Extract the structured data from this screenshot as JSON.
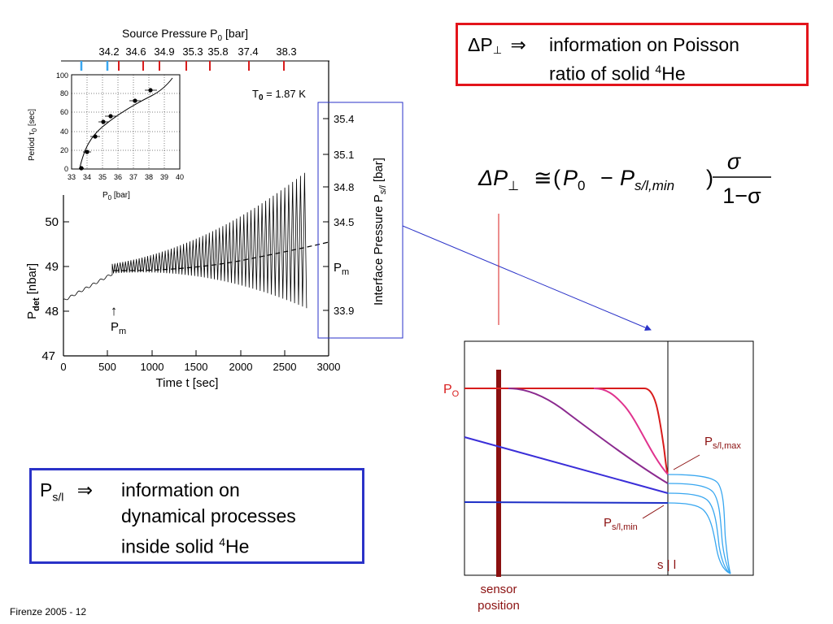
{
  "footer": "Firenze 2005 - 12",
  "box_top": {
    "prefix": "ΔP",
    "perp": "⊥",
    "arrow": "⇒",
    "line1": "information on Poisson",
    "line2_pre": "ratio of solid ",
    "line2_sup": "4",
    "line2_post": "He"
  },
  "box_bottom": {
    "p": "P",
    "sub": "s/l",
    "arrow": "⇒",
    "line1": "information on",
    "line2": "dynamical processes",
    "line3_pre": "inside solid ",
    "line3_sup": "4",
    "line3_post": "He"
  },
  "formula": {
    "lhs": "ΔP",
    "lhs_sub": "⊥",
    "approx": "≅",
    "open": "(",
    "p0": "P",
    "p0_sub": "0",
    "minus": "−",
    "ps": "P",
    "ps_sub": "s/l,min",
    "close": ")",
    "numerator": "σ",
    "denominator": "1−σ"
  },
  "main_plot": {
    "top_axis_title": "Source Pressure P",
    "top_axis_sub": "0",
    "top_axis_unit": " [bar]",
    "top_ticks": [
      "34.2",
      "34.6",
      "34.9",
      "35.3",
      "35.8",
      "37.4",
      "38.3"
    ],
    "temp_label": "T",
    "temp_sub": "0",
    "temp_val": " = 1.87 K",
    "x_axis_title": "Time t  [sec]",
    "y_axis_title": "P",
    "y_axis_sub": "det",
    "y_axis_unit": " [nbar]",
    "x_ticks": [
      "0",
      "500",
      "1000",
      "1500",
      "2000",
      "2500",
      "3000"
    ],
    "y_ticks": [
      "47",
      "48",
      "49",
      "50"
    ],
    "right_ticks": [
      "35.4",
      "35.1",
      "34.8",
      "34.5",
      "33.9"
    ],
    "right_pm": "P",
    "right_pm_sub": "m",
    "right_axis_title": "Interface Pressure P",
    "right_axis_sub": "s/l",
    "right_axis_unit": " [bar]",
    "pm_arrow": "↑",
    "pm_label": "P",
    "pm_sub": "m"
  },
  "inset": {
    "y_title": "Period  τ",
    "y_sub": "0",
    "y_unit": " [sec]",
    "x_title": "P",
    "x_sub": "0",
    "x_unit": " [bar]",
    "x_ticks": [
      "33",
      "34",
      "35",
      "36",
      "37",
      "38",
      "39",
      "40"
    ],
    "y_ticks": [
      "0",
      "20",
      "40",
      "60",
      "80",
      "100"
    ]
  },
  "profile": {
    "po": "P",
    "po_sub": "O",
    "pmax": "P",
    "pmax_sub": "s/l,max",
    "pmin": "P",
    "pmin_sub": "s/l,min",
    "sl": "s | l",
    "sensor1": "sensor",
    "sensor2": "position"
  },
  "colors": {
    "red_box": "#e3141b",
    "blue_box": "#2a32c8",
    "dark_red": "#8b1010",
    "red": "#d81c1c",
    "magenta": "#e0338e",
    "purple": "#8b2a8f",
    "blue_line": "#3a2ed8",
    "navy_line": "#1d2fc6",
    "light_blue": "#39a7f0",
    "connector": "#2a32c8"
  }
}
